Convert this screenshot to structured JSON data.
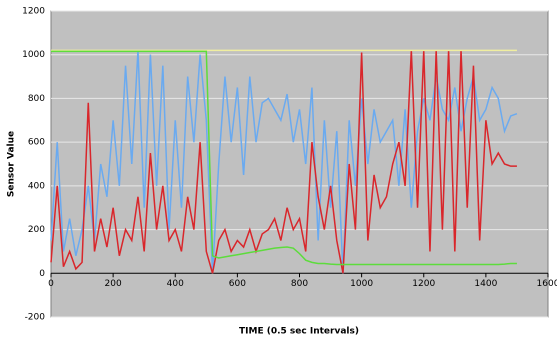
{
  "chart_data": {
    "type": "line",
    "x_label": "TIME (0.5 sec Intervals)",
    "y_label": "Sensor Value",
    "x": [
      0,
      20,
      40,
      60,
      80,
      100,
      120,
      140,
      160,
      180,
      200,
      220,
      240,
      260,
      280,
      300,
      320,
      340,
      360,
      380,
      400,
      420,
      440,
      460,
      480,
      500,
      520,
      540,
      560,
      580,
      600,
      620,
      640,
      660,
      680,
      700,
      720,
      740,
      760,
      780,
      800,
      820,
      840,
      860,
      880,
      900,
      920,
      940,
      960,
      980,
      1000,
      1020,
      1040,
      1060,
      1080,
      1100,
      1120,
      1140,
      1160,
      1180,
      1200,
      1220,
      1240,
      1260,
      1280,
      1300,
      1320,
      1340,
      1360,
      1380,
      1400,
      1420,
      1440,
      1460,
      1480,
      1500
    ],
    "series": [
      {
        "color": "#6aaaf0",
        "values": [
          150,
          600,
          100,
          250,
          80,
          200,
          400,
          150,
          500,
          350,
          700,
          400,
          950,
          500,
          1020,
          300,
          1000,
          400,
          950,
          200,
          700,
          300,
          900,
          600,
          1000,
          700,
          0,
          500,
          900,
          600,
          850,
          450,
          900,
          600,
          780,
          800,
          750,
          700,
          820,
          600,
          750,
          500,
          850,
          150,
          700,
          300,
          650,
          0,
          700,
          400,
          800,
          500,
          750,
          600,
          650,
          700,
          400,
          750,
          300,
          650,
          800,
          700,
          900,
          750,
          700,
          850,
          650,
          800,
          900,
          700,
          750,
          850,
          800,
          650,
          720,
          730
        ]
      },
      {
        "color": "#d9262b",
        "values": [
          50,
          400,
          30,
          100,
          20,
          50,
          780,
          100,
          250,
          120,
          300,
          80,
          200,
          150,
          350,
          100,
          550,
          200,
          400,
          150,
          200,
          100,
          350,
          200,
          600,
          100,
          0,
          150,
          200,
          100,
          150,
          120,
          200,
          100,
          180,
          200,
          250,
          150,
          300,
          200,
          250,
          100,
          600,
          350,
          200,
          400,
          150,
          0,
          500,
          200,
          1010,
          150,
          450,
          300,
          350,
          500,
          600,
          400,
          1020,
          300,
          1020,
          100,
          1020,
          200,
          1020,
          100,
          1020,
          300,
          950,
          150,
          700,
          500,
          550,
          500,
          490,
          490
        ]
      },
      {
        "color": "#f0eea0",
        "values": [
          1020,
          1020,
          1020,
          1020,
          1020,
          1020,
          1020,
          1020,
          1020,
          1020,
          1020,
          1020,
          1020,
          1020,
          1020,
          1020,
          1020,
          1020,
          1020,
          1020,
          1020,
          1020,
          1020,
          1020,
          1020,
          1020,
          1020,
          1020,
          1020,
          1020,
          1020,
          1020,
          1020,
          1020,
          1020,
          1020,
          1020,
          1020,
          1020,
          1020,
          1020,
          1020,
          1020,
          1020,
          1020,
          1020,
          1020,
          1020,
          1020,
          1020,
          1020,
          1020,
          1020,
          1020,
          1020,
          1020,
          1020,
          1020,
          1020,
          1020,
          1020,
          1020,
          1020,
          1020,
          1020,
          1020,
          1020,
          1020,
          1020,
          1020,
          1020,
          1020,
          1020,
          1020,
          1020,
          1020
        ]
      },
      {
        "color": "#5ddc3c",
        "values": [
          1015,
          1015,
          1015,
          1015,
          1015,
          1015,
          1015,
          1015,
          1015,
          1015,
          1015,
          1015,
          1015,
          1015,
          1015,
          1015,
          1015,
          1015,
          1015,
          1015,
          1015,
          1015,
          1015,
          1015,
          1015,
          1015,
          80,
          70,
          75,
          80,
          85,
          90,
          95,
          100,
          105,
          110,
          115,
          118,
          120,
          115,
          90,
          60,
          50,
          45,
          45,
          42,
          40,
          40,
          40,
          40,
          40,
          40,
          40,
          40,
          40,
          40,
          40,
          40,
          40,
          40,
          40,
          40,
          40,
          40,
          40,
          40,
          40,
          40,
          40,
          40,
          40,
          40,
          40,
          42,
          45,
          45
        ]
      }
    ],
    "xlim": [
      0,
      1600
    ],
    "xticks": [
      0,
      200,
      400,
      600,
      800,
      1000,
      1200,
      1400,
      1600
    ],
    "ylim": [
      -200,
      1200
    ],
    "yticks": [
      -200,
      0,
      200,
      400,
      600,
      800,
      1000,
      1200
    ],
    "grid": true,
    "background": "#c0c0c0"
  }
}
